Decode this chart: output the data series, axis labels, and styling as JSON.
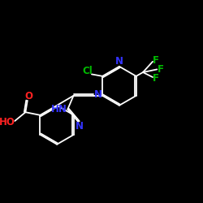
{
  "background_color": "#000000",
  "bond_color": "#ffffff",
  "cl_color": "#00bb00",
  "f_color": "#00bb00",
  "n_color": "#3333ff",
  "o_color": "#ff2222",
  "ho_color": "#ff2222",
  "font_size": 8.5,
  "figsize": [
    2.5,
    2.5
  ],
  "dpi": 100,
  "xlim": [
    0,
    10
  ],
  "ylim": [
    0,
    10
  ]
}
